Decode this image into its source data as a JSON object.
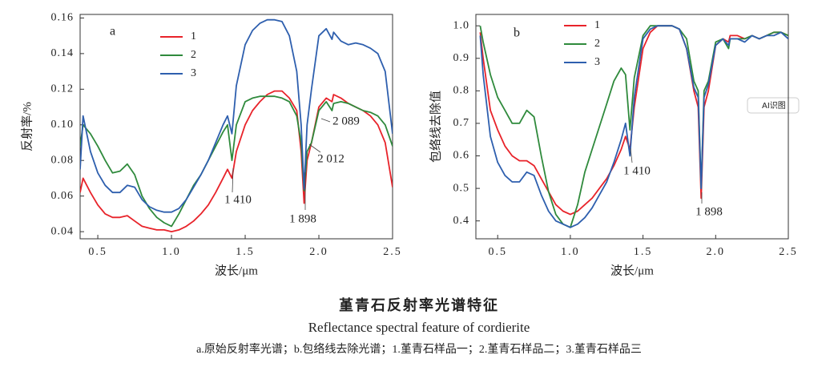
{
  "chart_data": [
    {
      "type": "line",
      "panel_label": "a",
      "ylabel": "反射率/%",
      "xlabel": "波长/μm",
      "xlim": [
        0.38,
        2.5
      ],
      "ylim": [
        0.036,
        0.162
      ],
      "xticks": [
        0.5,
        {
          "value": 1.0,
          "label": "1.0"
        },
        1.5,
        {
          "value": 2.0,
          "label": "2.0"
        },
        2.5
      ],
      "yticks": [
        0.04,
        0.06,
        0.08,
        {
          "value": 0.1,
          "label": "0.10"
        },
        0.12,
        0.14,
        0.16
      ],
      "annotations": [
        "1 410",
        "1 898",
        "2 012",
        "2 089"
      ],
      "x": [
        0.38,
        0.4,
        0.45,
        0.5,
        0.55,
        0.6,
        0.65,
        0.7,
        0.75,
        0.8,
        0.85,
        0.9,
        0.95,
        1.0,
        1.05,
        1.1,
        1.15,
        1.2,
        1.25,
        1.3,
        1.35,
        1.38,
        1.41,
        1.44,
        1.5,
        1.55,
        1.6,
        1.65,
        1.7,
        1.75,
        1.8,
        1.85,
        1.88,
        1.9,
        1.92,
        1.95,
        2.0,
        2.05,
        2.089,
        2.1,
        2.15,
        2.2,
        2.25,
        2.3,
        2.35,
        2.4,
        2.45,
        2.5
      ],
      "series": [
        {
          "name": "1",
          "color": "#e8232a",
          "values": [
            0.062,
            0.07,
            0.062,
            0.055,
            0.05,
            0.048,
            0.048,
            0.049,
            0.046,
            0.043,
            0.042,
            0.041,
            0.041,
            0.04,
            0.041,
            0.043,
            0.046,
            0.05,
            0.055,
            0.062,
            0.07,
            0.075,
            0.07,
            0.085,
            0.1,
            0.108,
            0.113,
            0.117,
            0.119,
            0.119,
            0.115,
            0.108,
            0.085,
            0.056,
            0.08,
            0.09,
            0.11,
            0.115,
            0.113,
            0.117,
            0.115,
            0.112,
            0.11,
            0.108,
            0.105,
            0.1,
            0.09,
            0.065
          ]
        },
        {
          "name": "2",
          "color": "#2f8a3c",
          "values": [
            0.088,
            0.1,
            0.095,
            0.088,
            0.08,
            0.073,
            0.074,
            0.078,
            0.072,
            0.06,
            0.053,
            0.048,
            0.045,
            0.043,
            0.05,
            0.058,
            0.066,
            0.072,
            0.08,
            0.088,
            0.096,
            0.1,
            0.08,
            0.1,
            0.113,
            0.115,
            0.116,
            0.116,
            0.116,
            0.115,
            0.113,
            0.105,
            0.09,
            0.063,
            0.085,
            0.09,
            0.108,
            0.113,
            0.108,
            0.112,
            0.113,
            0.112,
            0.11,
            0.108,
            0.107,
            0.105,
            0.1,
            0.088
          ]
        },
        {
          "name": "3",
          "color": "#2e5fae",
          "values": [
            0.075,
            0.105,
            0.085,
            0.073,
            0.066,
            0.062,
            0.062,
            0.066,
            0.065,
            0.058,
            0.054,
            0.052,
            0.051,
            0.051,
            0.053,
            0.058,
            0.065,
            0.072,
            0.08,
            0.09,
            0.1,
            0.105,
            0.095,
            0.122,
            0.145,
            0.153,
            0.157,
            0.159,
            0.159,
            0.158,
            0.15,
            0.13,
            0.1,
            0.064,
            0.1,
            0.12,
            0.15,
            0.154,
            0.148,
            0.152,
            0.147,
            0.145,
            0.146,
            0.145,
            0.143,
            0.14,
            0.13,
            0.095
          ]
        }
      ]
    },
    {
      "type": "line",
      "panel_label": "b",
      "ylabel": "包络线去除值",
      "xlabel": "波长/μm",
      "xlim": [
        0.35,
        2.5
      ],
      "ylim": [
        0.345,
        1.035
      ],
      "xticks": [
        0.5,
        {
          "value": 1.0,
          "label": "1.0"
        },
        1.5,
        {
          "value": 2.0,
          "label": "2.0"
        },
        2.5
      ],
      "yticks": [
        0.4,
        0.5,
        0.6,
        0.7,
        0.8,
        0.9,
        {
          "value": 1.0,
          "label": "1.0"
        }
      ],
      "annotations": [
        "1 410",
        "1 898"
      ],
      "x": [
        0.38,
        0.4,
        0.45,
        0.5,
        0.55,
        0.6,
        0.65,
        0.7,
        0.75,
        0.8,
        0.85,
        0.9,
        0.95,
        1.0,
        1.05,
        1.1,
        1.15,
        1.2,
        1.25,
        1.3,
        1.35,
        1.38,
        1.41,
        1.44,
        1.5,
        1.55,
        1.6,
        1.65,
        1.7,
        1.75,
        1.8,
        1.85,
        1.88,
        1.9,
        1.92,
        1.95,
        2.0,
        2.05,
        2.089,
        2.1,
        2.15,
        2.2,
        2.25,
        2.3,
        2.35,
        2.4,
        2.45,
        2.5
      ],
      "series": [
        {
          "name": "1",
          "color": "#e8232a",
          "values": [
            0.98,
            0.9,
            0.74,
            0.68,
            0.63,
            0.6,
            0.585,
            0.585,
            0.57,
            0.53,
            0.49,
            0.45,
            0.43,
            0.42,
            0.43,
            0.45,
            0.47,
            0.5,
            0.53,
            0.57,
            0.62,
            0.66,
            0.62,
            0.75,
            0.93,
            0.98,
            1.0,
            1.0,
            1.0,
            0.99,
            0.93,
            0.8,
            0.75,
            0.47,
            0.75,
            0.8,
            0.94,
            0.96,
            0.95,
            0.97,
            0.97,
            0.96,
            0.97,
            0.96,
            0.97,
            0.98,
            0.98,
            0.97
          ]
        },
        {
          "name": "2",
          "color": "#2f8a3c",
          "values": [
            1.0,
            0.95,
            0.85,
            0.78,
            0.74,
            0.7,
            0.7,
            0.74,
            0.72,
            0.6,
            0.49,
            0.42,
            0.39,
            0.38,
            0.45,
            0.55,
            0.62,
            0.69,
            0.76,
            0.83,
            0.87,
            0.85,
            0.68,
            0.84,
            0.97,
            1.0,
            1.0,
            1.0,
            1.0,
            0.99,
            0.96,
            0.83,
            0.8,
            0.5,
            0.8,
            0.83,
            0.95,
            0.96,
            0.93,
            0.96,
            0.96,
            0.96,
            0.97,
            0.96,
            0.97,
            0.98,
            0.98,
            0.97
          ]
        },
        {
          "name": "3",
          "color": "#2e5fae",
          "values": [
            0.97,
            0.85,
            0.66,
            0.58,
            0.54,
            0.52,
            0.52,
            0.55,
            0.54,
            0.48,
            0.43,
            0.4,
            0.39,
            0.38,
            0.39,
            0.41,
            0.44,
            0.48,
            0.52,
            0.58,
            0.65,
            0.7,
            0.6,
            0.78,
            0.96,
            0.99,
            1.0,
            1.0,
            1.0,
            0.99,
            0.93,
            0.81,
            0.78,
            0.5,
            0.78,
            0.82,
            0.94,
            0.96,
            0.94,
            0.96,
            0.96,
            0.95,
            0.97,
            0.96,
            0.97,
            0.97,
            0.98,
            0.96
          ]
        }
      ]
    }
  ],
  "caption": {
    "title": "堇青石反射率光谱特征",
    "english": "Reflectance spectral feature of cordierite",
    "note": "a.原始反射率光谱；b.包络线去除光谱；1.堇青石样品一；2.堇青石样品二；3.堇青石样品三"
  },
  "overlay_button": "AI识图"
}
